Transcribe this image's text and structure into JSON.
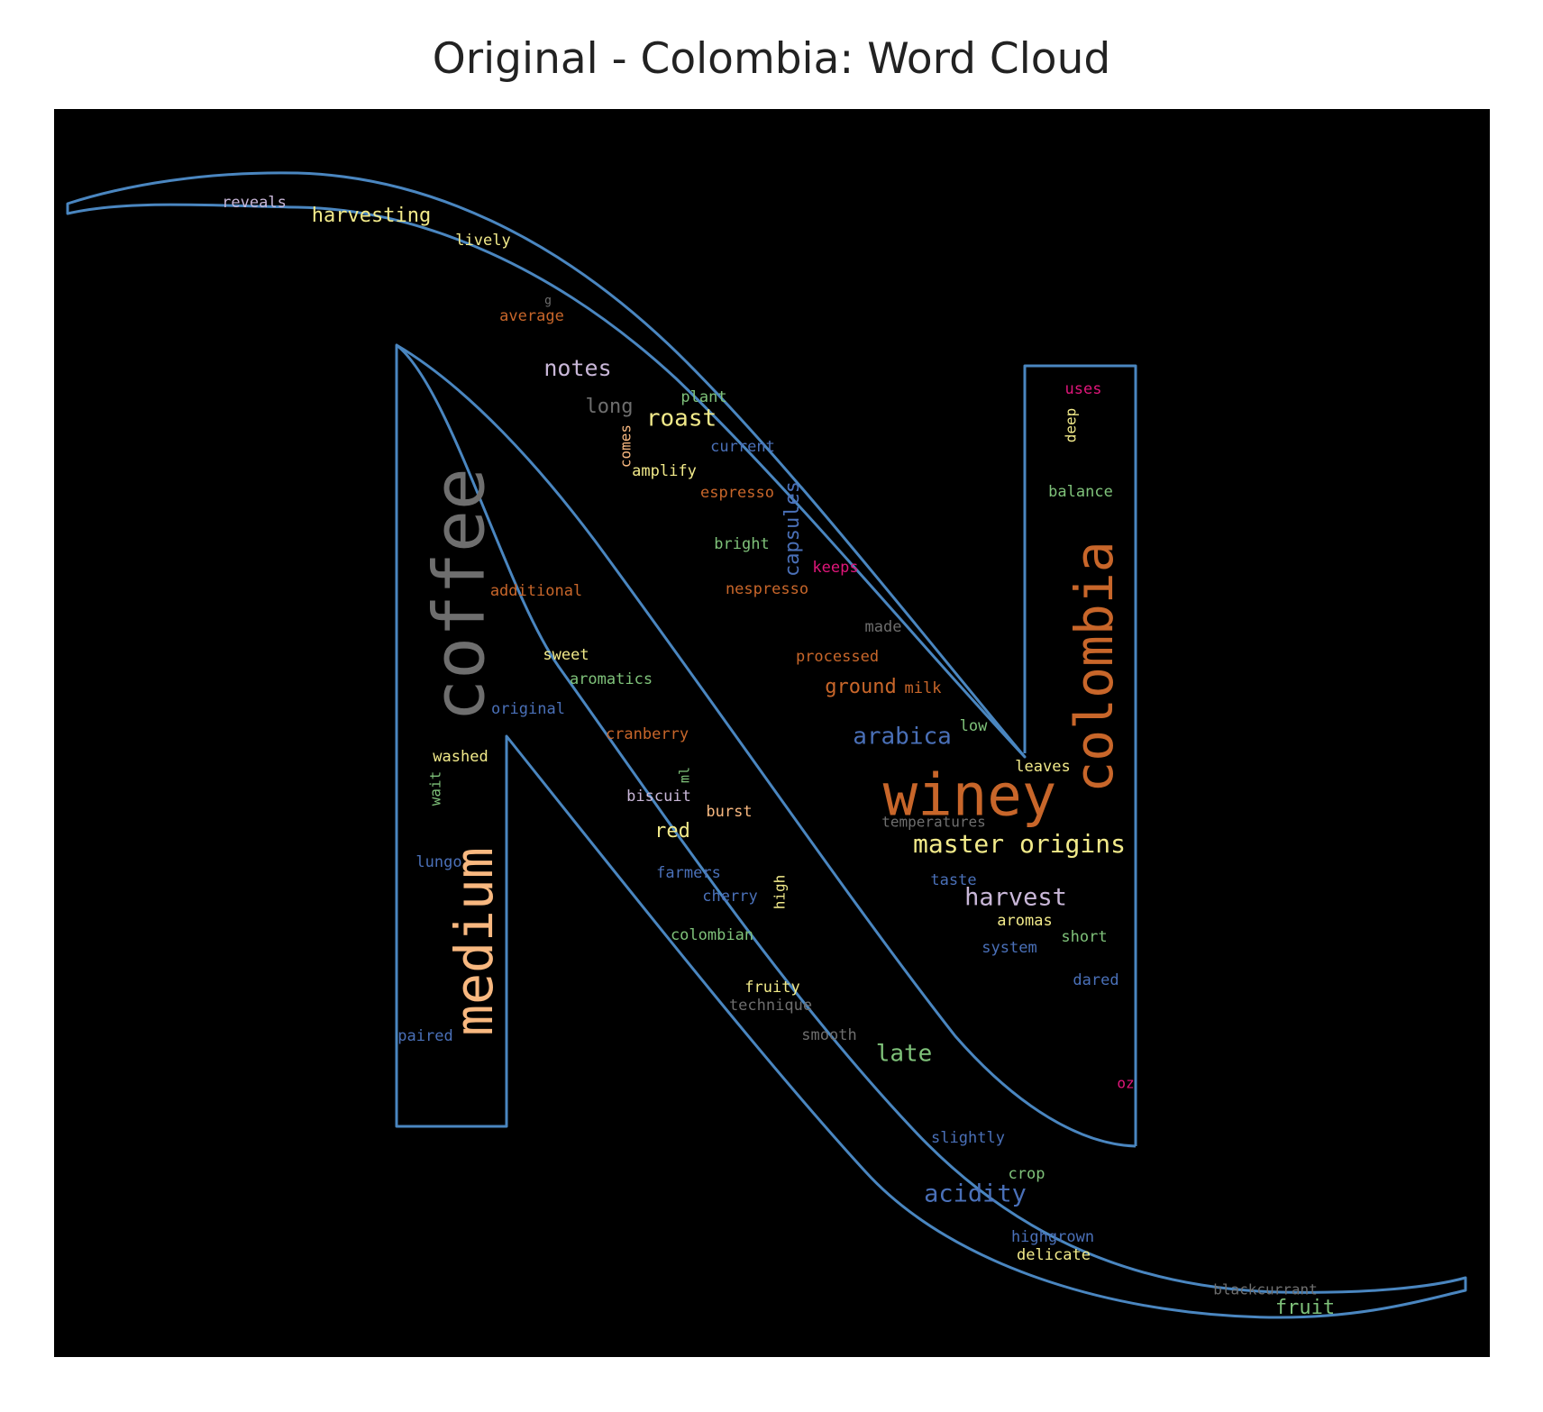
{
  "title": "Original - Colombia: Word Cloud",
  "colors": {
    "background": "#000000",
    "outline": "#4a86c0",
    "page": "#ffffff"
  },
  "chart_data": {
    "type": "wordcloud",
    "title": "Original - Colombia: Word Cloud",
    "mask_shape": "letter-N-outline",
    "words": [
      {
        "text": "winey",
        "color": "#c8662a"
      },
      {
        "text": "colombia",
        "color": "#c8662a"
      },
      {
        "text": "coffee",
        "color": "#6e6e6e"
      },
      {
        "text": "medium",
        "color": "#f8b880"
      },
      {
        "text": "master origins",
        "color": "#f2ea8a"
      },
      {
        "text": "harvest",
        "color": "#c9b7d8"
      },
      {
        "text": "arabica",
        "color": "#4a70b8"
      },
      {
        "text": "acidity",
        "color": "#4a70b8"
      },
      {
        "text": "notes",
        "color": "#c9b7d8"
      },
      {
        "text": "roast",
        "color": "#f2ea8a"
      },
      {
        "text": "late",
        "color": "#7fc27a"
      },
      {
        "text": "harvesting",
        "color": "#f2ea8a"
      },
      {
        "text": "long",
        "color": "#6e6e6e"
      },
      {
        "text": "capsules",
        "color": "#4a70b8"
      },
      {
        "text": "ground",
        "color": "#c8662a"
      },
      {
        "text": "red",
        "color": "#f2ea8a"
      },
      {
        "text": "fruit",
        "color": "#7fc27a"
      },
      {
        "text": "reveals",
        "color": "#c9b7d8"
      },
      {
        "text": "lively",
        "color": "#f2ea8a"
      },
      {
        "text": "g",
        "color": "#6e6e6e"
      },
      {
        "text": "average",
        "color": "#c8662a"
      },
      {
        "text": "plant",
        "color": "#7fc27a"
      },
      {
        "text": "comes",
        "color": "#f8b880"
      },
      {
        "text": "current",
        "color": "#4a70b8"
      },
      {
        "text": "amplify",
        "color": "#f2ea8a"
      },
      {
        "text": "espresso",
        "color": "#c8662a"
      },
      {
        "text": "bright",
        "color": "#7fc27a"
      },
      {
        "text": "keeps",
        "color": "#e0167a"
      },
      {
        "text": "nespresso",
        "color": "#c8662a"
      },
      {
        "text": "additional",
        "color": "#c8662a"
      },
      {
        "text": "made",
        "color": "#6e6e6e"
      },
      {
        "text": "processed",
        "color": "#c8662a"
      },
      {
        "text": "milk",
        "color": "#c8662a"
      },
      {
        "text": "sweet",
        "color": "#f2ea8a"
      },
      {
        "text": "aromatics",
        "color": "#7fc27a"
      },
      {
        "text": "original",
        "color": "#4a70b8"
      },
      {
        "text": "cranberry",
        "color": "#c8662a"
      },
      {
        "text": "low",
        "color": "#7fc27a"
      },
      {
        "text": "washed",
        "color": "#f2ea8a"
      },
      {
        "text": "wait",
        "color": "#7fc27a"
      },
      {
        "text": "ml",
        "color": "#7fc27a"
      },
      {
        "text": "biscuit",
        "color": "#c9b7d8"
      },
      {
        "text": "burst",
        "color": "#f8b880"
      },
      {
        "text": "leaves",
        "color": "#f2ea8a"
      },
      {
        "text": "temperatures",
        "color": "#6e6e6e"
      },
      {
        "text": "uses",
        "color": "#e0167a"
      },
      {
        "text": "deep",
        "color": "#f2ea8a"
      },
      {
        "text": "balance",
        "color": "#7fc27a"
      },
      {
        "text": "lungo",
        "color": "#4a70b8"
      },
      {
        "text": "farmers",
        "color": "#4a70b8"
      },
      {
        "text": "cherry",
        "color": "#4a70b8"
      },
      {
        "text": "high",
        "color": "#f2ea8a"
      },
      {
        "text": "taste",
        "color": "#4a70b8"
      },
      {
        "text": "aromas",
        "color": "#f2ea8a"
      },
      {
        "text": "short",
        "color": "#7fc27a"
      },
      {
        "text": "system",
        "color": "#4a70b8"
      },
      {
        "text": "colombian",
        "color": "#7fc27a"
      },
      {
        "text": "dared",
        "color": "#4a70b8"
      },
      {
        "text": "fruity",
        "color": "#f2ea8a"
      },
      {
        "text": "technique",
        "color": "#6e6e6e"
      },
      {
        "text": "smooth",
        "color": "#6e6e6e"
      },
      {
        "text": "paired",
        "color": "#4a70b8"
      },
      {
        "text": "oz",
        "color": "#e0167a"
      },
      {
        "text": "slightly",
        "color": "#4a70b8"
      },
      {
        "text": "crop",
        "color": "#7fc27a"
      },
      {
        "text": "highgrown",
        "color": "#4a70b8"
      },
      {
        "text": "delicate",
        "color": "#f2ea8a"
      },
      {
        "text": "blackcurrant",
        "color": "#6e6e6e"
      }
    ]
  }
}
